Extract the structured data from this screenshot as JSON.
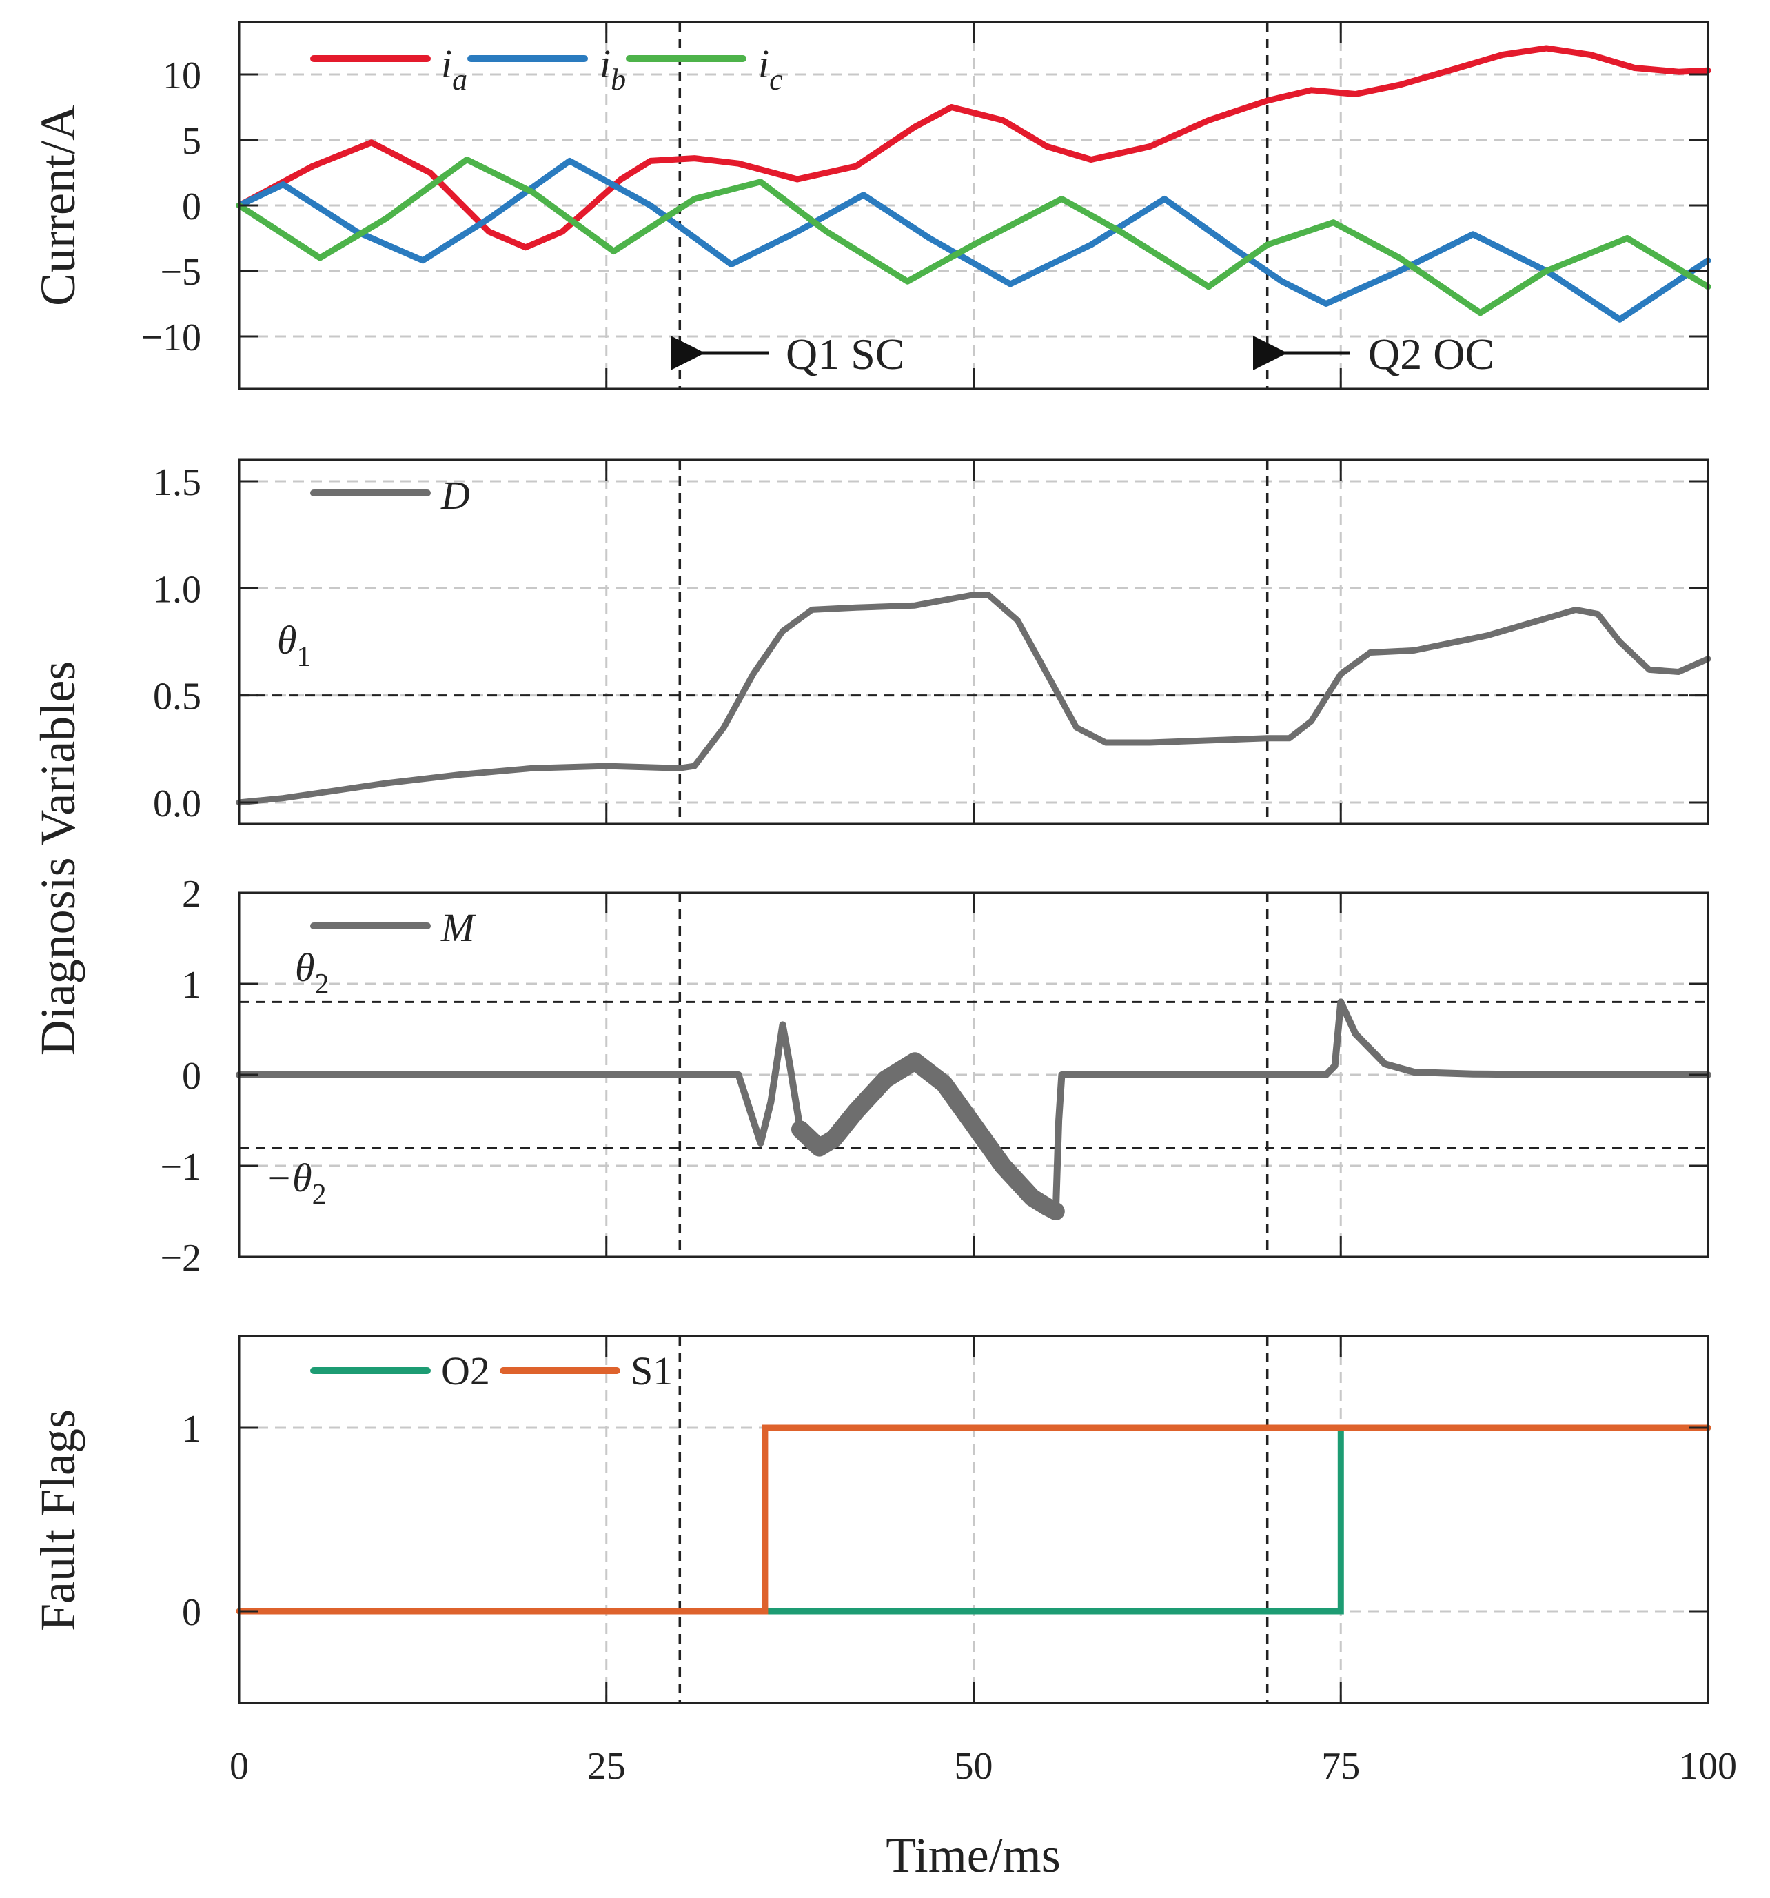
{
  "colors": {
    "ia": "#e41a2c",
    "ib": "#2a7bbf",
    "ic": "#4db34a",
    "diag": "#6e6e6e",
    "o2": "#1d9c73",
    "s1": "#de622c",
    "event": "#222222",
    "grid": "#c8c8c8"
  },
  "chart_data": [
    {
      "type": "line",
      "ylabel": "Current/A",
      "xlim": [
        0,
        100
      ],
      "ylim": [
        -14,
        14
      ],
      "yticks": [
        10,
        5,
        0,
        -5,
        -10
      ],
      "ytick_labels": [
        "10",
        "5",
        "0",
        "−5",
        "−10"
      ],
      "series": [
        {
          "id": "ia",
          "name_main": "i",
          "name_sub": "a",
          "x": [
            0,
            5,
            9,
            13,
            17,
            19.5,
            22,
            26,
            28,
            31,
            34,
            38,
            42,
            46,
            48.5,
            52,
            55,
            58,
            62,
            66,
            70,
            73,
            76,
            79,
            83,
            86,
            89,
            92,
            95,
            98,
            100
          ],
          "y": [
            0,
            3,
            4.8,
            2.5,
            -2,
            -3.2,
            -2,
            2,
            3.4,
            3.6,
            3.2,
            2,
            3,
            6,
            7.5,
            6.5,
            4.5,
            3.5,
            4.5,
            6.5,
            8,
            8.8,
            8.5,
            9.2,
            10.5,
            11.5,
            12,
            11.5,
            10.5,
            10.2,
            10.3
          ]
        },
        {
          "id": "ib",
          "name_main": "i",
          "name_sub": "b",
          "x": [
            0,
            3,
            8,
            12.5,
            17,
            22.5,
            28,
            33.5,
            38,
            42.5,
            47,
            52.5,
            58,
            63,
            68,
            71,
            74,
            79,
            84,
            89,
            94,
            100
          ],
          "y": [
            0,
            1.6,
            -2,
            -4.2,
            -1,
            3.4,
            0,
            -4.5,
            -2,
            0.8,
            -2.5,
            -6,
            -3,
            0.5,
            -3.5,
            -5.8,
            -7.5,
            -5,
            -2.2,
            -5,
            -8.7,
            -4.2
          ]
        },
        {
          "id": "ic",
          "name_main": "i",
          "name_sub": "c",
          "x": [
            0,
            5.5,
            10,
            15.5,
            20,
            25.5,
            31,
            35.5,
            40,
            45.5,
            50,
            56,
            60,
            66,
            70,
            74.5,
            79,
            84.5,
            89,
            94.5,
            100
          ],
          "y": [
            0,
            -4,
            -1,
            3.5,
            1,
            -3.5,
            0.5,
            1.8,
            -2,
            -5.8,
            -3,
            0.5,
            -2,
            -6.2,
            -3,
            -1.3,
            -4,
            -8.2,
            -5,
            -2.5,
            -6.2
          ]
        }
      ],
      "annotations": [
        {
          "text": "Q1 SC",
          "x": 30
        },
        {
          "text": "Q2 OC",
          "x": 70
        }
      ]
    },
    {
      "type": "line",
      "xlim": [
        0,
        100
      ],
      "ylim": [
        -0.1,
        1.6
      ],
      "yticks": [
        1.5,
        1.0,
        0.5,
        0.0
      ],
      "ytick_labels": [
        "1.5",
        "1.0",
        "0.5",
        "0.0"
      ],
      "series": [
        {
          "id": "D",
          "name": "D",
          "x": [
            0,
            3,
            6,
            10,
            15,
            20,
            25,
            30,
            31,
            33,
            35,
            37,
            39,
            42,
            46,
            50,
            51,
            53,
            55,
            57,
            59,
            62,
            66,
            70,
            71.5,
            73,
            75,
            77,
            80,
            85,
            91,
            92.5,
            94,
            96,
            98,
            100
          ],
          "y": [
            0,
            0.02,
            0.05,
            0.09,
            0.13,
            0.16,
            0.17,
            0.16,
            0.17,
            0.35,
            0.6,
            0.8,
            0.9,
            0.91,
            0.92,
            0.97,
            0.97,
            0.85,
            0.6,
            0.35,
            0.28,
            0.28,
            0.29,
            0.3,
            0.3,
            0.38,
            0.6,
            0.7,
            0.71,
            0.78,
            0.9,
            0.88,
            0.75,
            0.62,
            0.61,
            0.67
          ]
        }
      ],
      "threshold": {
        "label_main": "θ",
        "label_sub": "1",
        "value": 0.5
      }
    },
    {
      "type": "line",
      "xlim": [
        0,
        100
      ],
      "ylim": [
        -2,
        2
      ],
      "yticks": [
        2,
        1,
        0,
        -1,
        -2
      ],
      "ytick_labels": [
        "2",
        "1",
        "0",
        "−1",
        "−2"
      ],
      "series": [
        {
          "id": "M",
          "name": "M",
          "x": [
            0,
            34,
            35,
            35.5,
            36.2,
            37,
            37.5,
            38.2,
            39.5,
            40.5,
            42,
            44,
            46,
            48,
            50,
            52,
            54,
            55,
            55.6,
            55.8,
            56,
            70,
            74,
            74.6,
            75,
            76,
            78,
            80,
            84,
            90,
            100
          ],
          "y": [
            0,
            0,
            -0.5,
            -0.75,
            -0.3,
            0.55,
            0.1,
            -0.6,
            -0.8,
            -0.7,
            -0.4,
            -0.05,
            0.15,
            -0.1,
            -0.55,
            -1.0,
            -1.35,
            -1.45,
            -1.5,
            -0.5,
            0,
            0,
            0,
            0.1,
            0.8,
            0.45,
            0.12,
            0.03,
            0.01,
            0,
            0
          ]
        }
      ],
      "thresholds": [
        {
          "label_main": "θ",
          "label_sub": "2",
          "value": 0.8
        },
        {
          "label_main": "−θ",
          "label_sub": "2",
          "value": -0.8
        }
      ]
    },
    {
      "type": "line",
      "ylabel": "Fault Flags",
      "xlabel": "Time/ms",
      "xlim": [
        0,
        100
      ],
      "ylim": [
        -0.5,
        1.5
      ],
      "yticks": [
        1,
        0
      ],
      "ytick_labels": [
        "1",
        "0"
      ],
      "xticks": [
        0,
        25,
        50,
        75,
        100
      ],
      "xtick_labels": [
        "0",
        "25",
        "50",
        "75",
        "100"
      ],
      "series": [
        {
          "id": "O2",
          "name": "O2",
          "x": [
            0,
            75,
            75,
            100
          ],
          "y": [
            0,
            0,
            1,
            1
          ]
        },
        {
          "id": "S1",
          "name": "S1",
          "x": [
            0,
            35.8,
            35.8,
            100
          ],
          "y": [
            0,
            0,
            1,
            1
          ]
        }
      ]
    }
  ],
  "shared_ylabel": "Diagnosis Variables",
  "event_lines_x": [
    30,
    70
  ]
}
